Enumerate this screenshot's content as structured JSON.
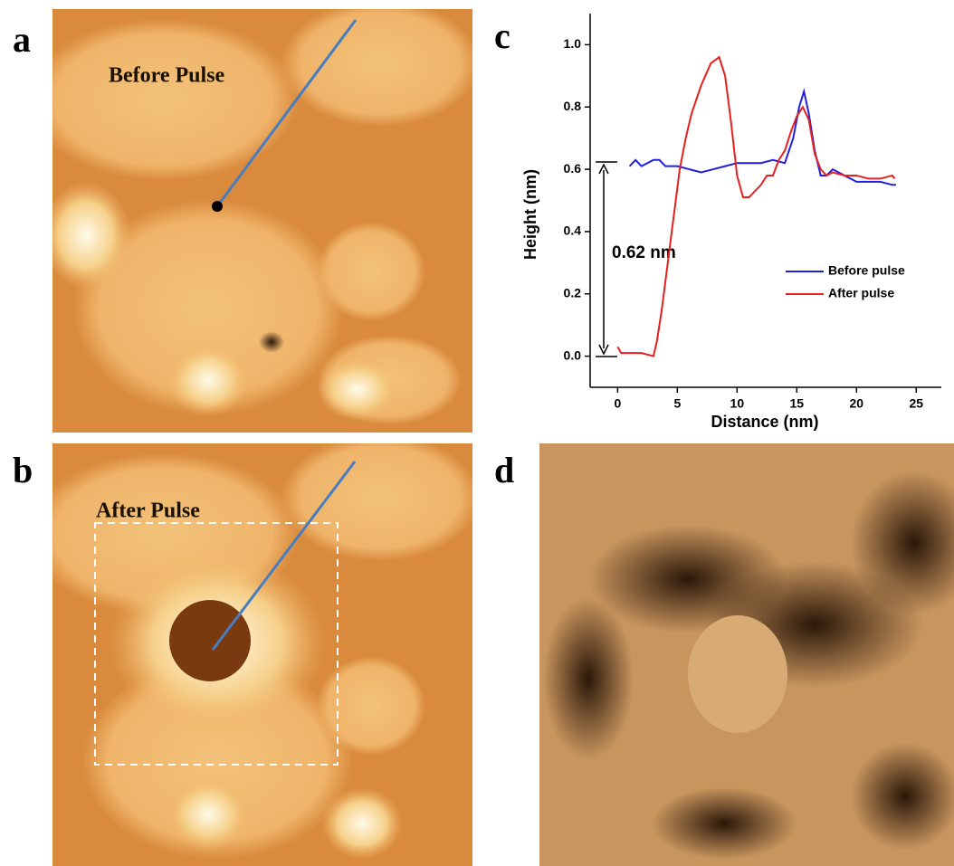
{
  "panel_labels": [
    "a",
    "b",
    "c",
    "d"
  ],
  "image_texts": [
    "Before Pulse",
    "After Pulse"
  ],
  "chart_data": {
    "type": "line",
    "xlabel": "Distance (nm)",
    "ylabel": "Height (nm)",
    "annotation": "0.62 nm",
    "xlim": [
      -2.3,
      27.1
    ],
    "ylim": [
      -0.1,
      1.1
    ],
    "xticks": [
      0,
      5,
      10,
      15,
      20,
      25
    ],
    "yticks": [
      {
        "value": 0,
        "label": "0.0"
      },
      0.2,
      0.4,
      0.6,
      0.8,
      {
        "value": 1,
        "label": "1.0"
      }
    ],
    "legend": "right",
    "series": [
      {
        "name": "Before pulse",
        "color": "#1f1fe0",
        "x": [
          1,
          1.5,
          2,
          3,
          3.5,
          4,
          5,
          6,
          7,
          8,
          9,
          10,
          11,
          12,
          13,
          14,
          14.7,
          15.2,
          15.6,
          16,
          16.5,
          17,
          17.5,
          18,
          18.5,
          19,
          20,
          21,
          22,
          23,
          23.3
        ],
        "values": [
          0.61,
          0.63,
          0.61,
          0.63,
          0.63,
          0.61,
          0.61,
          0.6,
          0.59,
          0.6,
          0.61,
          0.62,
          0.62,
          0.62,
          0.63,
          0.62,
          0.7,
          0.8,
          0.85,
          0.78,
          0.66,
          0.58,
          0.58,
          0.6,
          0.59,
          0.58,
          0.56,
          0.56,
          0.56,
          0.55,
          0.55
        ]
      },
      {
        "name": "After pulse",
        "color": "#e81f1f",
        "x": [
          0,
          0.3,
          1,
          2,
          3,
          3.3,
          3.7,
          4.2,
          4.7,
          5.2,
          5.7,
          6.2,
          7,
          7.8,
          8.5,
          9,
          9.5,
          10,
          10.5,
          11,
          12,
          12.5,
          13,
          13.5,
          14,
          14.5,
          15,
          15.5,
          16,
          16.5,
          17,
          17.5,
          18,
          19,
          20,
          21,
          22,
          23,
          23.2
        ],
        "values": [
          0.03,
          0.01,
          0.01,
          0.01,
          0.0,
          0.05,
          0.15,
          0.3,
          0.45,
          0.6,
          0.7,
          0.78,
          0.87,
          0.94,
          0.96,
          0.9,
          0.75,
          0.58,
          0.51,
          0.51,
          0.55,
          0.58,
          0.58,
          0.63,
          0.66,
          0.72,
          0.77,
          0.8,
          0.76,
          0.65,
          0.6,
          0.58,
          0.59,
          0.58,
          0.58,
          0.57,
          0.57,
          0.58,
          0.57
        ]
      }
    ]
  }
}
